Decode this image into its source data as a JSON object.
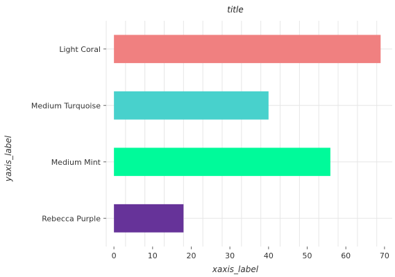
{
  "chart_data": {
    "type": "bar",
    "orientation": "horizontal",
    "title": "title",
    "xlabel": "xaxis_label",
    "ylabel": "yaxis_label",
    "categories": [
      "Rebecca Purple",
      "Medium Mint",
      "Medium Turquoise",
      "Light Coral"
    ],
    "values": [
      18,
      56,
      40,
      69
    ],
    "colors": [
      "#663399",
      "#00fa9a",
      "#48d1cc",
      "#f08080"
    ],
    "xlim": [
      -2,
      72
    ],
    "xticks": [
      0,
      10,
      20,
      30,
      40,
      50,
      60,
      70
    ],
    "grid": true,
    "legend": "none"
  }
}
